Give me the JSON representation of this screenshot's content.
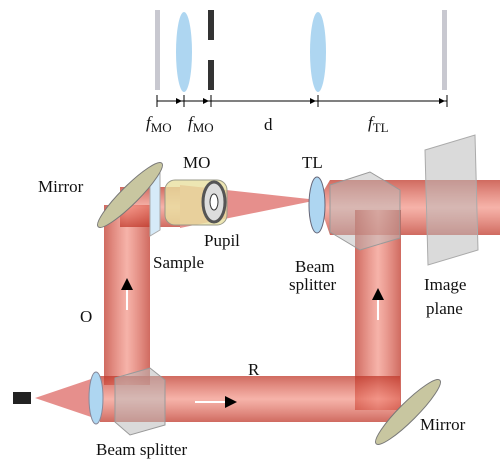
{
  "top_scheme": {
    "labels": [
      {
        "symbol": "f",
        "subscript": "MO"
      },
      {
        "symbol": "f",
        "subscript": "MO"
      },
      {
        "text": "d"
      },
      {
        "symbol": "f",
        "subscript": "TL"
      }
    ]
  },
  "components": {
    "mo": "MO",
    "tl": "TL",
    "mirror_top": "Mirror",
    "pupil": "Pupil",
    "sample": "Sample",
    "beam_splitter_right": [
      "Beam",
      "splitter"
    ],
    "image_plane": [
      "Image",
      "plane"
    ],
    "mirror_bottom": "Mirror",
    "beam_splitter_bottom": "Beam splitter"
  },
  "beams": {
    "object": "O",
    "reference": "R"
  }
}
